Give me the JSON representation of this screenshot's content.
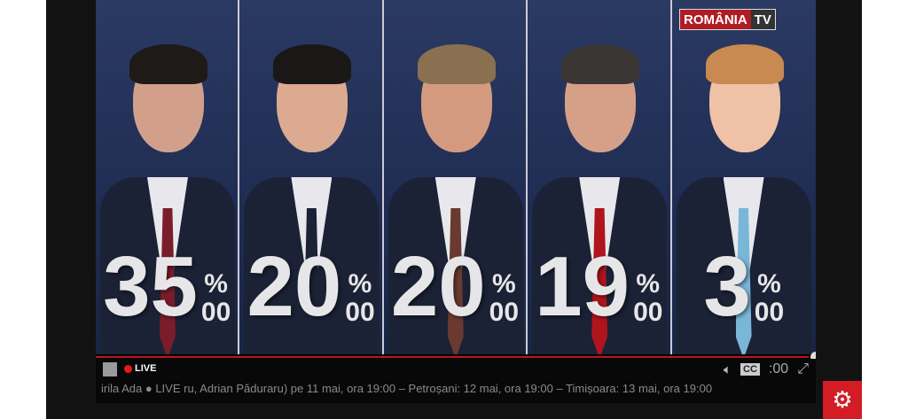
{
  "channel_logo": {
    "left": "ROMÂNIA",
    "right": "TV"
  },
  "candidates": [
    {
      "percent": "35",
      "unit_top": "%",
      "unit_bottom": "00",
      "skin": "#d2a08a",
      "hair": "#1e1a18",
      "tie": "#7a1d2a"
    },
    {
      "percent": "20",
      "unit_top": "%",
      "unit_bottom": "00",
      "skin": "#dcaa90",
      "hair": "#1a1816",
      "tie": "#1b2236"
    },
    {
      "percent": "20",
      "unit_top": "%",
      "unit_bottom": "00",
      "skin": "#d49a80",
      "hair": "#8a7050",
      "tie": "#6a3a30"
    },
    {
      "percent": "19",
      "unit_top": "%",
      "unit_bottom": "00",
      "skin": "#d6a088",
      "hair": "#3a3634",
      "tie": "#b0141c"
    },
    {
      "percent": "3",
      "unit_top": "%",
      "unit_bottom": "00",
      "skin": "#efc2a8",
      "hair": "#c88a50",
      "tie": "#7ab6d8"
    }
  ],
  "ticker": {
    "text": "irila Ada  ●  LIVE ru, Adrian Păduraru) pe 11 mai, ora 19:00 – Petroșani: 12 mai, ora 19:00 – Timișoara: 13 mai, ora 19:00",
    "live_label": "LIVE",
    "time": ":00",
    "cc_label": "CC"
  },
  "playback": {
    "progress_percent": 99
  },
  "colors": {
    "accent": "#d41c24"
  }
}
